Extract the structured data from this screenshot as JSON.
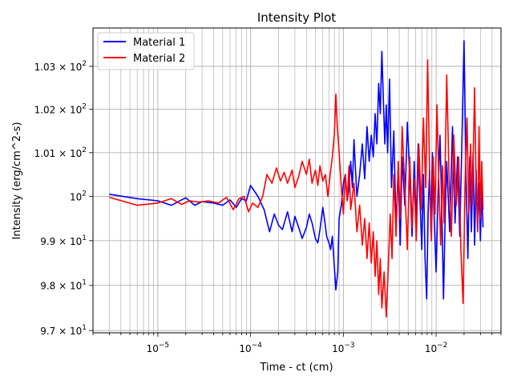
{
  "chart_data": {
    "type": "line",
    "title": "Intensity Plot",
    "xlabel": "Time - ct (cm)",
    "ylabel": "Intensity (erg/cm^2-s)",
    "xscale": "log",
    "yscale": "log",
    "xlim": [
      2e-06,
      0.05
    ],
    "ylim": [
      96.95,
      103.9
    ],
    "grid": "major and minor",
    "legend_position": "upper-left",
    "x_ticks": [
      {
        "value": 1e-05,
        "base": "10",
        "exp": "−5"
      },
      {
        "value": 0.0001,
        "base": "10",
        "exp": "−4"
      },
      {
        "value": 0.001,
        "base": "10",
        "exp": "−3"
      },
      {
        "value": 0.01,
        "base": "10",
        "exp": "−2"
      }
    ],
    "y_ticks": [
      {
        "value": 97,
        "coef": "9.7 × ",
        "base": "10",
        "exp": "1"
      },
      {
        "value": 98,
        "coef": "9.8 × ",
        "base": "10",
        "exp": "1"
      },
      {
        "value": 99,
        "coef": "9.9 × ",
        "base": "10",
        "exp": "1"
      },
      {
        "value": 100,
        "coef": "",
        "base": "10",
        "exp": "2"
      },
      {
        "value": 101,
        "coef": "1.01 × ",
        "base": "10",
        "exp": "2"
      },
      {
        "value": 102,
        "coef": "1.02 × ",
        "base": "10",
        "exp": "2"
      },
      {
        "value": 103,
        "coef": "1.03 × ",
        "base": "10",
        "exp": "2"
      }
    ],
    "series": [
      {
        "name": "Material 1",
        "color": "#0000ff",
        "points": [
          [
            3e-06,
            100.05
          ],
          [
            6e-06,
            99.95
          ],
          [
            1e-05,
            99.9
          ],
          [
            1.4e-05,
            99.8
          ],
          [
            2e-05,
            99.97
          ],
          [
            2.5e-05,
            99.8
          ],
          [
            3e-05,
            99.88
          ],
          [
            4e-05,
            99.85
          ],
          [
            5e-05,
            99.8
          ],
          [
            6e-05,
            99.92
          ],
          [
            7e-05,
            99.75
          ],
          [
            8e-05,
            99.95
          ],
          [
            9e-05,
            99.9
          ],
          [
            0.0001,
            100.25
          ],
          [
            0.00012,
            100.0
          ],
          [
            0.00014,
            99.7
          ],
          [
            0.00016,
            99.2
          ],
          [
            0.00018,
            99.6
          ],
          [
            0.0002,
            99.35
          ],
          [
            0.00022,
            99.25
          ],
          [
            0.00025,
            99.65
          ],
          [
            0.00028,
            99.2
          ],
          [
            0.0003,
            99.55
          ],
          [
            0.00033,
            99.3
          ],
          [
            0.00036,
            99.05
          ],
          [
            0.0004,
            99.3
          ],
          [
            0.00043,
            99.6
          ],
          [
            0.00046,
            99.4
          ],
          [
            0.0005,
            99.05
          ],
          [
            0.00053,
            98.95
          ],
          [
            0.00056,
            99.25
          ],
          [
            0.0006,
            99.75
          ],
          [
            0.00063,
            99.45
          ],
          [
            0.00066,
            99.1
          ],
          [
            0.0007,
            98.95
          ],
          [
            0.00073,
            98.8
          ],
          [
            0.00076,
            99.1
          ],
          [
            0.0008,
            98.4
          ],
          [
            0.00083,
            97.9
          ],
          [
            0.00087,
            98.3
          ],
          [
            0.0009,
            99.5
          ],
          [
            0.00095,
            99.8
          ],
          [
            0.001,
            100.3
          ],
          [
            0.00105,
            100.5
          ],
          [
            0.0011,
            99.9
          ],
          [
            0.00115,
            100.2
          ],
          [
            0.0012,
            100.8
          ],
          [
            0.00125,
            100.2
          ],
          [
            0.0013,
            101.3
          ],
          [
            0.00135,
            100.6
          ],
          [
            0.0014,
            100.0
          ],
          [
            0.0015,
            100.5
          ],
          [
            0.0016,
            101.2
          ],
          [
            0.0017,
            100.4
          ],
          [
            0.0018,
            101.6
          ],
          [
            0.0019,
            100.8
          ],
          [
            0.002,
            101.4
          ],
          [
            0.0021,
            100.9
          ],
          [
            0.0022,
            101.9
          ],
          [
            0.0023,
            101.2
          ],
          [
            0.0024,
            102.6
          ],
          [
            0.0025,
            101.9
          ],
          [
            0.0026,
            103.35
          ],
          [
            0.0027,
            102.2
          ],
          [
            0.0028,
            101.2
          ],
          [
            0.0029,
            102.1
          ],
          [
            0.003,
            101.0
          ],
          [
            0.00315,
            102.7
          ],
          [
            0.0033,
            100.2
          ],
          [
            0.0035,
            101.5
          ],
          [
            0.0037,
            99.3
          ],
          [
            0.0039,
            100.6
          ],
          [
            0.0041,
            98.9
          ],
          [
            0.0043,
            100.9
          ],
          [
            0.0046,
            99.8
          ],
          [
            0.0049,
            101.7
          ],
          [
            0.0052,
            100.5
          ],
          [
            0.0055,
            99.1
          ],
          [
            0.0058,
            100.8
          ],
          [
            0.0061,
            99.4
          ],
          [
            0.0064,
            101.2
          ],
          [
            0.0067,
            99.9
          ],
          [
            0.007,
            98.8
          ],
          [
            0.0073,
            100.5
          ],
          [
            0.0076,
            98.6
          ],
          [
            0.0079,
            97.7
          ],
          [
            0.0082,
            99.6
          ],
          [
            0.0085,
            100.6
          ],
          [
            0.0088,
            99.2
          ],
          [
            0.0091,
            101.0
          ],
          [
            0.0095,
            99.6
          ],
          [
            0.01,
            98.3
          ],
          [
            0.0105,
            100.1
          ],
          [
            0.011,
            101.4
          ],
          [
            0.0115,
            99.8
          ],
          [
            0.012,
            97.7
          ],
          [
            0.0125,
            99.5
          ],
          [
            0.013,
            100.8
          ],
          [
            0.014,
            99.2
          ],
          [
            0.015,
            101.6
          ],
          [
            0.016,
            99.4
          ],
          [
            0.017,
            100.9
          ],
          [
            0.018,
            99.1
          ],
          [
            0.019,
            101.4
          ],
          [
            0.02,
            103.6
          ],
          [
            0.021,
            100.5
          ],
          [
            0.022,
            98.6
          ],
          [
            0.023,
            100.9
          ],
          [
            0.024,
            99.2
          ],
          [
            0.025,
            101.0
          ],
          [
            0.026,
            98.9
          ],
          [
            0.027,
            100.6
          ],
          [
            0.028,
            99.3
          ],
          [
            0.029,
            100.3
          ],
          [
            0.03,
            99.0
          ],
          [
            0.031,
            100.2
          ],
          [
            0.032,
            99.3
          ]
        ]
      },
      {
        "name": "Material 2",
        "color": "#ff0000",
        "points": [
          [
            3e-06,
            99.98
          ],
          [
            6e-06,
            99.8
          ],
          [
            1e-05,
            99.85
          ],
          [
            1.4e-05,
            99.95
          ],
          [
            1.8e-05,
            99.82
          ],
          [
            2.2e-05,
            99.9
          ],
          [
            2.8e-05,
            99.87
          ],
          [
            3.5e-05,
            99.9
          ],
          [
            4.5e-05,
            99.85
          ],
          [
            5.5e-05,
            99.98
          ],
          [
            6.5e-05,
            99.7
          ],
          [
            7.5e-05,
            99.95
          ],
          [
            8.5e-05,
            100.0
          ],
          [
            9.5e-05,
            99.65
          ],
          [
            0.000105,
            99.85
          ],
          [
            0.00012,
            99.75
          ],
          [
            0.000135,
            100.0
          ],
          [
            0.00015,
            100.5
          ],
          [
            0.00017,
            100.3
          ],
          [
            0.00019,
            100.65
          ],
          [
            0.00021,
            100.35
          ],
          [
            0.00023,
            100.55
          ],
          [
            0.00025,
            100.3
          ],
          [
            0.00028,
            100.6
          ],
          [
            0.0003,
            100.2
          ],
          [
            0.00033,
            100.45
          ],
          [
            0.00036,
            100.8
          ],
          [
            0.0004,
            100.5
          ],
          [
            0.00043,
            100.85
          ],
          [
            0.00046,
            100.3
          ],
          [
            0.0005,
            100.6
          ],
          [
            0.00053,
            100.25
          ],
          [
            0.00056,
            100.7
          ],
          [
            0.0006,
            100.35
          ],
          [
            0.00064,
            100.5
          ],
          [
            0.00068,
            100.0
          ],
          [
            0.00072,
            100.5
          ],
          [
            0.00076,
            100.9
          ],
          [
            0.0008,
            101.45
          ],
          [
            0.00083,
            102.35
          ],
          [
            0.00086,
            101.6
          ],
          [
            0.0009,
            101.0
          ],
          [
            0.00095,
            100.2
          ],
          [
            0.001,
            99.6
          ],
          [
            0.00105,
            100.5
          ],
          [
            0.0011,
            99.9
          ],
          [
            0.00115,
            100.7
          ],
          [
            0.0012,
            99.7
          ],
          [
            0.0013,
            100.3
          ],
          [
            0.0014,
            99.2
          ],
          [
            0.0015,
            99.8
          ],
          [
            0.0016,
            98.9
          ],
          [
            0.0017,
            99.5
          ],
          [
            0.0018,
            98.6
          ],
          [
            0.0019,
            99.4
          ],
          [
            0.002,
            98.5
          ],
          [
            0.0021,
            99.2
          ],
          [
            0.0022,
            98.2
          ],
          [
            0.0023,
            99.0
          ],
          [
            0.0024,
            97.8
          ],
          [
            0.0025,
            98.6
          ],
          [
            0.0026,
            97.5
          ],
          [
            0.00275,
            98.3
          ],
          [
            0.0029,
            97.3
          ],
          [
            0.00305,
            98.4
          ],
          [
            0.0032,
            99.6
          ],
          [
            0.00335,
            98.6
          ],
          [
            0.0035,
            100.5
          ],
          [
            0.0037,
            99.1
          ],
          [
            0.0039,
            100.8
          ],
          [
            0.0041,
            99.5
          ],
          [
            0.0043,
            101.6
          ],
          [
            0.0046,
            100.2
          ],
          [
            0.0049,
            98.8
          ],
          [
            0.0052,
            100.9
          ],
          [
            0.0055,
            99.3
          ],
          [
            0.0058,
            100.4
          ],
          [
            0.0061,
            99.0
          ],
          [
            0.0065,
            101.2
          ],
          [
            0.0069,
            99.7
          ],
          [
            0.0073,
            101.8
          ],
          [
            0.0077,
            100.2
          ],
          [
            0.0081,
            103.15
          ],
          [
            0.0085,
            100.6
          ],
          [
            0.0089,
            99.0
          ],
          [
            0.0093,
            100.9
          ],
          [
            0.0097,
            99.6
          ],
          [
            0.0102,
            102.1
          ],
          [
            0.0107,
            100.3
          ],
          [
            0.0112,
            98.9
          ],
          [
            0.0117,
            100.7
          ],
          [
            0.0122,
            99.4
          ],
          [
            0.013,
            102.8
          ],
          [
            0.0138,
            100.4
          ],
          [
            0.0146,
            99.1
          ],
          [
            0.0155,
            101.4
          ],
          [
            0.0165,
            99.8
          ],
          [
            0.0175,
            100.9
          ],
          [
            0.0185,
            98.8
          ],
          [
            0.0195,
            97.6
          ],
          [
            0.0205,
            100.2
          ],
          [
            0.0215,
            101.8
          ],
          [
            0.0225,
            99.6
          ],
          [
            0.0235,
            101.2
          ],
          [
            0.0245,
            99.8
          ],
          [
            0.026,
            102.5
          ],
          [
            0.027,
            100.3
          ],
          [
            0.028,
            99.2
          ],
          [
            0.029,
            101.6
          ],
          [
            0.03,
            99.5
          ],
          [
            0.031,
            100.8
          ],
          [
            0.032,
            99.7
          ]
        ]
      }
    ]
  }
}
